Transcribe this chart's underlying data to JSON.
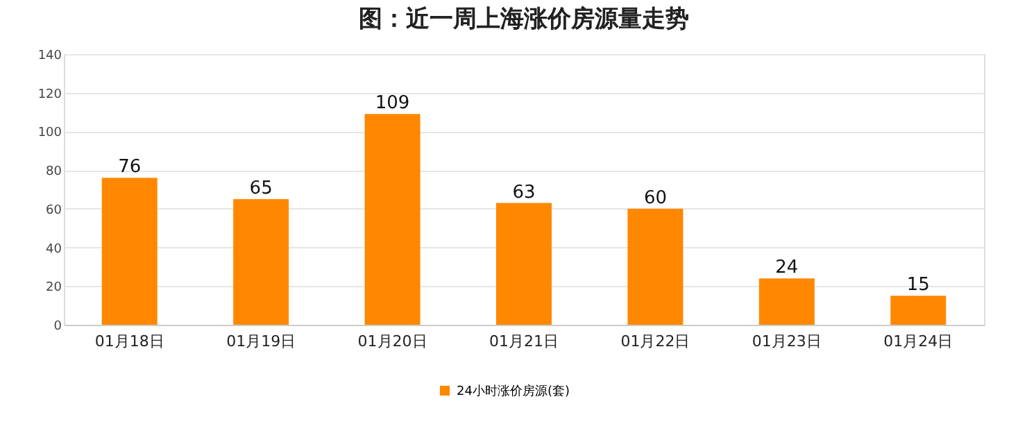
{
  "chart_data": {
    "type": "bar",
    "title": "图：近一周上海涨价房源量走势",
    "categories": [
      "01月18日",
      "01月19日",
      "01月20日",
      "01月21日",
      "01月22日",
      "01月23日",
      "01月24日"
    ],
    "series": [
      {
        "name": "24小时涨价房源(套)",
        "color": "#ff8800",
        "values": [
          76,
          65,
          109,
          63,
          60,
          24,
          15
        ]
      }
    ],
    "ylim": [
      0,
      140
    ],
    "yticks": [
      0,
      20,
      40,
      60,
      80,
      100,
      120,
      140
    ],
    "grid": "y",
    "legend": "bottom",
    "data_labels": true
  }
}
